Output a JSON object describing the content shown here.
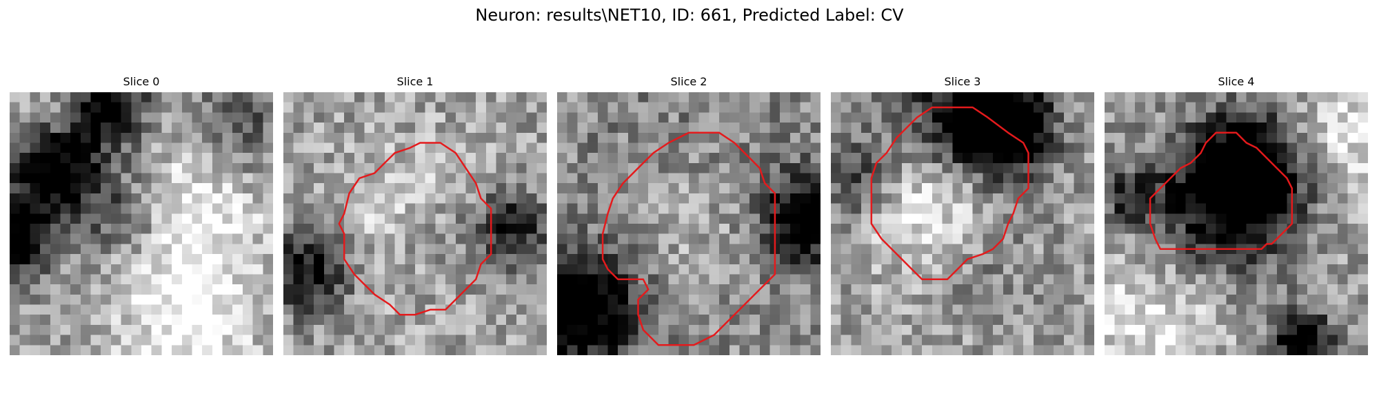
{
  "title": "Neuron: results\\NET10, ID: 661, Predicted Label: CV",
  "colors": {
    "contour": "#e41a1c"
  },
  "slices": [
    {
      "label": "Slice 0",
      "has_contour": false,
      "seed": 11,
      "dark_blobs": [
        [
          4,
          7,
          3.2,
          0.95
        ],
        [
          9,
          1,
          3.0,
          0.85
        ],
        [
          0,
          14,
          2.5,
          0.8
        ],
        [
          11,
          11,
          4,
          0.45
        ],
        [
          22,
          3,
          4,
          0.35
        ]
      ],
      "light_blobs": [
        [
          16,
          10,
          6,
          0.4
        ],
        [
          17,
          22,
          5,
          0.35
        ],
        [
          5,
          3,
          4,
          0.3
        ]
      ]
    },
    {
      "label": "Slice 1",
      "has_contour": true,
      "seed": 23,
      "dark_blobs": [
        [
          2,
          17,
          3,
          0.6
        ],
        [
          22,
          13,
          2.5,
          0.6
        ],
        [
          14,
          14,
          3,
          0.25
        ]
      ],
      "light_blobs": [
        [
          12,
          12,
          5,
          0.25
        ]
      ]
    },
    {
      "label": "Slice 2",
      "has_contour": true,
      "seed": 37,
      "dark_blobs": [
        [
          2,
          21,
          4,
          0.8
        ],
        [
          24,
          12,
          3,
          0.75
        ],
        [
          12,
          12,
          10,
          0.35
        ]
      ],
      "light_blobs": [
        [
          12,
          13,
          7,
          0.4
        ]
      ]
    },
    {
      "label": "Slice 3",
      "has_contour": true,
      "seed": 51,
      "dark_blobs": [
        [
          16,
          3,
          3.5,
          0.85
        ],
        [
          12,
          2,
          5,
          0.5
        ],
        [
          2,
          8,
          3,
          0.4
        ],
        [
          14,
          15,
          4,
          0.2
        ]
      ],
      "light_blobs": [
        [
          10,
          10,
          5,
          0.45
        ]
      ]
    },
    {
      "label": "Slice 4",
      "has_contour": true,
      "seed": 67,
      "dark_blobs": [
        [
          14,
          7,
          4,
          0.75
        ],
        [
          11,
          11,
          5,
          0.55
        ],
        [
          19,
          24,
          2,
          0.8
        ],
        [
          2,
          10,
          2,
          0.4
        ]
      ],
      "light_blobs": [
        [
          4,
          22,
          5,
          0.3
        ],
        [
          23,
          4,
          4,
          0.3
        ]
      ]
    }
  ]
}
